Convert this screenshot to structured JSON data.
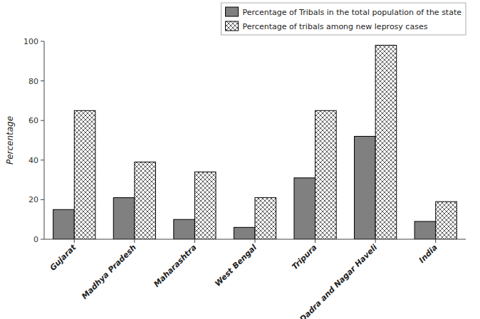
{
  "chart_data": {
    "type": "bar",
    "categories": [
      "Gujarat",
      "Madhya Pradesh",
      "Maharashtra",
      "West Bengal",
      "Tripura",
      "Dadra and Nagar Haveli",
      "India"
    ],
    "series": [
      {
        "name": "Percentage of Tribals in the total population of the state",
        "color": "#808080",
        "values": [
          15,
          21,
          10,
          6,
          31,
          52,
          9
        ]
      },
      {
        "name": "Percentage of tribals among new leprosy cases",
        "color": "#ffffff",
        "values": [
          65,
          39,
          34,
          21,
          65,
          98,
          19
        ]
      }
    ],
    "y_label": "Percentage",
    "ylim": [
      0,
      100
    ],
    "yticks": [
      0,
      20,
      40,
      60,
      80,
      100
    ],
    "legend": "upper right"
  }
}
